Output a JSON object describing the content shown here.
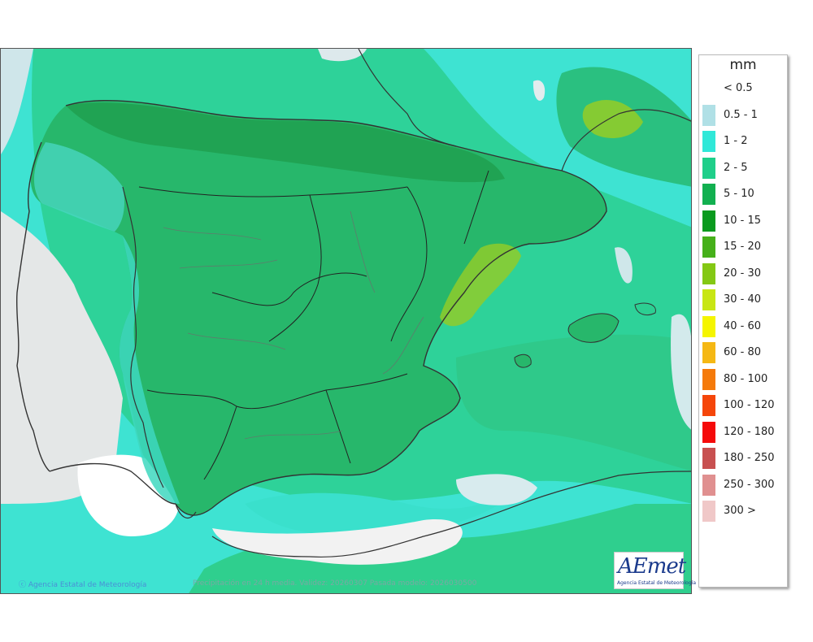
{
  "map": {
    "credit": "Agencia Estatal de Meteorología",
    "validity": "Precipitación en 24 h media. Validez: 20260307 Pasada modelo: 2026030500",
    "logo_text": "AEmet",
    "logo_sub": "Agencia Estatal de Meteorología",
    "colors": {
      "sea_light": "#3fd9c8",
      "green_lo": "#2fc98a",
      "green_mid": "#22b66b",
      "green_dark": "#1aa150",
      "yellow_green": "#8fcc2a",
      "white_dry": "#e6e8e8"
    }
  },
  "legend": {
    "unit": "mm",
    "items": [
      {
        "label": "< 0.5",
        "color": "#ffffff"
      },
      {
        "label": "0.5 - 1",
        "color": "#b0e0e6"
      },
      {
        "label": "1 - 2",
        "color": "#30e8d8"
      },
      {
        "label": "2 - 5",
        "color": "#1fcf8a"
      },
      {
        "label": "5 - 10",
        "color": "#12b050"
      },
      {
        "label": "10 - 15",
        "color": "#0a9a1e"
      },
      {
        "label": "15 - 20",
        "color": "#46b01a"
      },
      {
        "label": "20 - 30",
        "color": "#84c814"
      },
      {
        "label": "30 - 40",
        "color": "#c8e614"
      },
      {
        "label": "40 - 60",
        "color": "#f5f500"
      },
      {
        "label": "60 - 80",
        "color": "#f5b814"
      },
      {
        "label": "80 - 100",
        "color": "#f57a0a"
      },
      {
        "label": "100 - 120",
        "color": "#f5460a"
      },
      {
        "label": "120 - 180",
        "color": "#f50a0a"
      },
      {
        "label": "180 - 250",
        "color": "#c85050"
      },
      {
        "label": "250 - 300",
        "color": "#e09090"
      },
      {
        "label": "300 >",
        "color": "#f0c8c8"
      }
    ]
  }
}
